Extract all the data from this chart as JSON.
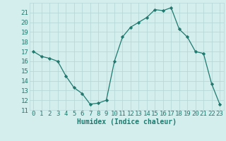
{
  "x": [
    0,
    1,
    2,
    3,
    4,
    5,
    6,
    7,
    8,
    9,
    10,
    11,
    12,
    13,
    14,
    15,
    16,
    17,
    18,
    19,
    20,
    21,
    22,
    23
  ],
  "y": [
    17.0,
    16.5,
    16.3,
    16.0,
    14.5,
    13.3,
    12.7,
    11.6,
    11.7,
    12.0,
    16.0,
    18.5,
    19.5,
    20.0,
    20.5,
    21.3,
    21.2,
    21.5,
    19.3,
    18.5,
    17.0,
    16.8,
    13.7,
    11.6
  ],
  "line_color": "#1e7a6e",
  "marker": "D",
  "marker_size": 2.2,
  "bg_color": "#d4eeee",
  "grid_color": "#b8d8d8",
  "xlabel": "Humidex (Indice chaleur)",
  "xlabel_fontsize": 7,
  "tick_fontsize": 6.5,
  "ylim": [
    11,
    22
  ],
  "xlim": [
    -0.5,
    23.5
  ],
  "yticks": [
    11,
    12,
    13,
    14,
    15,
    16,
    17,
    18,
    19,
    20,
    21
  ],
  "xticks": [
    0,
    1,
    2,
    3,
    4,
    5,
    6,
    7,
    8,
    9,
    10,
    11,
    12,
    13,
    14,
    15,
    16,
    17,
    18,
    19,
    20,
    21,
    22,
    23
  ]
}
